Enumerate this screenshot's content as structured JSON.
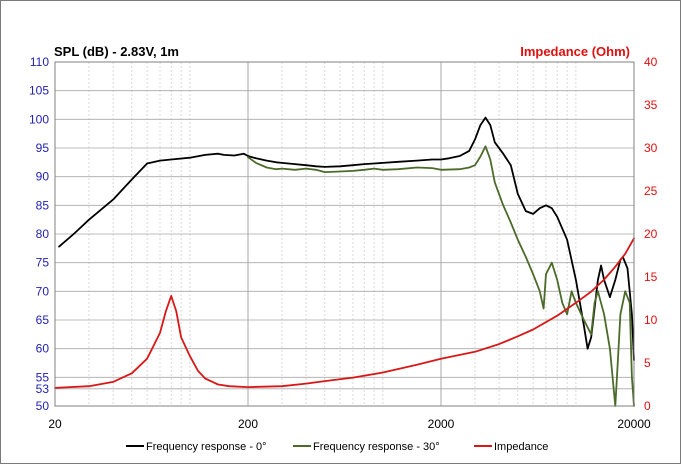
{
  "chart_data": {
    "type": "line",
    "title_left": "SPL (dB) - 2.83V, 1m",
    "title_right": "Impedance (Ohm)",
    "x_scale": "log",
    "xlim": [
      20,
      20000
    ],
    "x_ticks": [
      20,
      200,
      2000,
      20000
    ],
    "x_tick_labels": [
      "20",
      "200",
      "2000",
      "20000"
    ],
    "ylim_left": [
      50,
      110
    ],
    "y_ticks_left": [
      50,
      53,
      55,
      60,
      65,
      70,
      75,
      80,
      85,
      90,
      95,
      100,
      105,
      110
    ],
    "y_tick_labels_left": [
      "50",
      "53",
      "55",
      "60",
      "65",
      "70",
      "75",
      "80",
      "85",
      "90",
      "95",
      "100",
      "105",
      "110"
    ],
    "ylim_right": [
      0,
      40
    ],
    "y_ticks_right": [
      0,
      5,
      10,
      15,
      20,
      25,
      30,
      35,
      40
    ],
    "y_tick_labels_right": [
      "0",
      "5",
      "10",
      "15",
      "20",
      "25",
      "30",
      "35",
      "40"
    ],
    "grid": true,
    "legend_position": "bottom",
    "colors": {
      "left_axis": "#1f1fb4",
      "right_axis": "#e01010",
      "grid_major": "#a8a8a8",
      "grid_minor": "#d0d0d0"
    },
    "series": [
      {
        "name": "Frequency response - 0°",
        "axis": "left",
        "color": "#000000",
        "points": [
          [
            21,
            77.8
          ],
          [
            25,
            80
          ],
          [
            30,
            82.5
          ],
          [
            40,
            86
          ],
          [
            50,
            89.5
          ],
          [
            60,
            92.3
          ],
          [
            70,
            92.8
          ],
          [
            80,
            93
          ],
          [
            100,
            93.3
          ],
          [
            120,
            93.8
          ],
          [
            140,
            94
          ],
          [
            150,
            93.8
          ],
          [
            170,
            93.7
          ],
          [
            190,
            94
          ],
          [
            200,
            93.6
          ],
          [
            220,
            93.2
          ],
          [
            250,
            92.8
          ],
          [
            280,
            92.5
          ],
          [
            300,
            92.4
          ],
          [
            350,
            92.2
          ],
          [
            400,
            92
          ],
          [
            450,
            91.8
          ],
          [
            500,
            91.7
          ],
          [
            600,
            91.8
          ],
          [
            700,
            92
          ],
          [
            800,
            92.2
          ],
          [
            900,
            92.3
          ],
          [
            1000,
            92.4
          ],
          [
            1200,
            92.6
          ],
          [
            1500,
            92.8
          ],
          [
            1800,
            93
          ],
          [
            2000,
            93
          ],
          [
            2200,
            93.2
          ],
          [
            2500,
            93.6
          ],
          [
            2800,
            94.5
          ],
          [
            3000,
            96.5
          ],
          [
            3200,
            99
          ],
          [
            3400,
            100.3
          ],
          [
            3600,
            99
          ],
          [
            3800,
            96
          ],
          [
            4200,
            94
          ],
          [
            4600,
            92
          ],
          [
            5000,
            87
          ],
          [
            5500,
            84
          ],
          [
            6000,
            83.5
          ],
          [
            6500,
            84.5
          ],
          [
            7000,
            85
          ],
          [
            7500,
            84.5
          ],
          [
            8000,
            83
          ],
          [
            9000,
            79
          ],
          [
            10000,
            72
          ],
          [
            11000,
            64
          ],
          [
            11500,
            60
          ],
          [
            12000,
            62
          ],
          [
            13000,
            72
          ],
          [
            13500,
            74.5
          ],
          [
            14000,
            72
          ],
          [
            15000,
            69
          ],
          [
            16000,
            72
          ],
          [
            17000,
            75.5
          ],
          [
            17500,
            76
          ],
          [
            18500,
            74
          ],
          [
            19000,
            70
          ],
          [
            19500,
            66
          ],
          [
            20000,
            58
          ]
        ]
      },
      {
        "name": "Frequency response - 30°",
        "axis": "left",
        "color": "#4c6b2a",
        "points": [
          [
            200,
            93.4
          ],
          [
            220,
            92.4
          ],
          [
            250,
            91.6
          ],
          [
            280,
            91.3
          ],
          [
            300,
            91.4
          ],
          [
            350,
            91.2
          ],
          [
            400,
            91.4
          ],
          [
            450,
            91.2
          ],
          [
            500,
            90.8
          ],
          [
            600,
            90.9
          ],
          [
            700,
            91
          ],
          [
            800,
            91.2
          ],
          [
            900,
            91.4
          ],
          [
            1000,
            91.2
          ],
          [
            1200,
            91.3
          ],
          [
            1500,
            91.6
          ],
          [
            1800,
            91.5
          ],
          [
            2000,
            91.2
          ],
          [
            2500,
            91.3
          ],
          [
            2800,
            91.6
          ],
          [
            3000,
            92
          ],
          [
            3200,
            93.5
          ],
          [
            3400,
            95.3
          ],
          [
            3600,
            93
          ],
          [
            3800,
            89
          ],
          [
            4200,
            85
          ],
          [
            4600,
            82
          ],
          [
            5000,
            79
          ],
          [
            5500,
            76
          ],
          [
            6000,
            73
          ],
          [
            6500,
            70
          ],
          [
            6800,
            67
          ],
          [
            7000,
            73
          ],
          [
            7500,
            75
          ],
          [
            8000,
            72
          ],
          [
            8500,
            68
          ],
          [
            9000,
            66
          ],
          [
            9500,
            70
          ],
          [
            10000,
            68
          ],
          [
            11000,
            65
          ],
          [
            12000,
            62.5
          ],
          [
            12500,
            68
          ],
          [
            13000,
            70
          ],
          [
            14000,
            66
          ],
          [
            15000,
            60
          ],
          [
            16000,
            50
          ],
          [
            16500,
            58
          ],
          [
            17000,
            66
          ],
          [
            18000,
            70
          ],
          [
            19000,
            68
          ],
          [
            19500,
            55
          ],
          [
            20000,
            50
          ]
        ]
      },
      {
        "name": "Impedance",
        "axis": "right",
        "color": "#d81818",
        "points": [
          [
            20,
            2.1
          ],
          [
            30,
            2.3
          ],
          [
            40,
            2.8
          ],
          [
            50,
            3.8
          ],
          [
            60,
            5.5
          ],
          [
            70,
            8.5
          ],
          [
            75,
            11
          ],
          [
            80,
            12.8
          ],
          [
            85,
            11
          ],
          [
            90,
            8
          ],
          [
            100,
            5.8
          ],
          [
            110,
            4.1
          ],
          [
            120,
            3.2
          ],
          [
            140,
            2.5
          ],
          [
            160,
            2.3
          ],
          [
            200,
            2.2
          ],
          [
            300,
            2.3
          ],
          [
            400,
            2.6
          ],
          [
            500,
            2.9
          ],
          [
            700,
            3.3
          ],
          [
            1000,
            3.9
          ],
          [
            1500,
            4.8
          ],
          [
            2000,
            5.5
          ],
          [
            3000,
            6.3
          ],
          [
            4000,
            7.2
          ],
          [
            5000,
            8.1
          ],
          [
            6000,
            8.9
          ],
          [
            8000,
            10.5
          ],
          [
            10000,
            12
          ],
          [
            12000,
            13.3
          ],
          [
            14000,
            14.7
          ],
          [
            16000,
            16.2
          ],
          [
            18000,
            17.7
          ],
          [
            20000,
            19.5
          ]
        ]
      }
    ]
  }
}
